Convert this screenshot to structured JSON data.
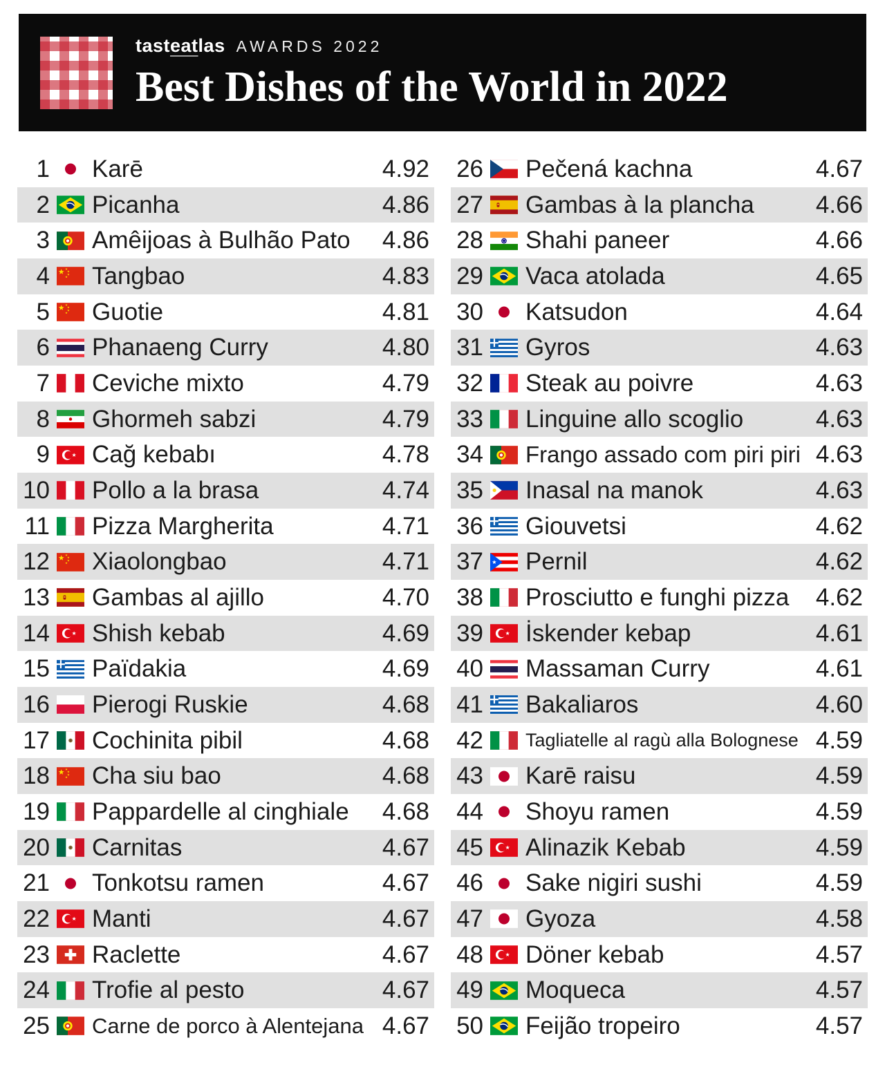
{
  "header": {
    "brand_pre": "tast",
    "brand_underline": "eat",
    "brand_post": "las",
    "awards": "AWARDS 2022",
    "title": "Best Dishes of the World in 2022"
  },
  "colors": {
    "header_bg": "#0b0b0b",
    "row_alt": "#e0e0e0",
    "gingham_red": "#c51c2c",
    "text": "#1b1b1b"
  },
  "list": {
    "items": [
      {
        "rank": 1,
        "country": "japan",
        "code": "jp",
        "dish": "Karē",
        "rating": "4.92"
      },
      {
        "rank": 2,
        "country": "brazil",
        "code": "br",
        "dish": "Picanha",
        "rating": "4.86"
      },
      {
        "rank": 3,
        "country": "portugal",
        "code": "pt",
        "dish": "Amêijoas à Bulhão Pato",
        "rating": "4.86"
      },
      {
        "rank": 4,
        "country": "china",
        "code": "cn",
        "dish": "Tangbao",
        "rating": "4.83"
      },
      {
        "rank": 5,
        "country": "china",
        "code": "cn",
        "dish": "Guotie",
        "rating": "4.81"
      },
      {
        "rank": 6,
        "country": "thailand",
        "code": "th",
        "dish": "Phanaeng Curry",
        "rating": "4.80"
      },
      {
        "rank": 7,
        "country": "peru",
        "code": "pe",
        "dish": "Ceviche mixto",
        "rating": "4.79"
      },
      {
        "rank": 8,
        "country": "iran",
        "code": "ir",
        "dish": "Ghormeh sabzi",
        "rating": "4.79"
      },
      {
        "rank": 9,
        "country": "turkey",
        "code": "tr",
        "dish": "Cağ kebabı",
        "rating": "4.78"
      },
      {
        "rank": 10,
        "country": "peru",
        "code": "pe",
        "dish": "Pollo a la brasa",
        "rating": "4.74"
      },
      {
        "rank": 11,
        "country": "italy",
        "code": "it",
        "dish": "Pizza Margherita",
        "rating": "4.71"
      },
      {
        "rank": 12,
        "country": "china",
        "code": "cn",
        "dish": "Xiaolongbao",
        "rating": "4.71"
      },
      {
        "rank": 13,
        "country": "spain",
        "code": "es",
        "dish": "Gambas al ajillo",
        "rating": "4.70"
      },
      {
        "rank": 14,
        "country": "turkey",
        "code": "tr",
        "dish": "Shish kebab",
        "rating": "4.69"
      },
      {
        "rank": 15,
        "country": "greece",
        "code": "gr",
        "dish": "Païdakia",
        "rating": "4.69"
      },
      {
        "rank": 16,
        "country": "poland",
        "code": "pl",
        "dish": "Pierogi Ruskie",
        "rating": "4.68"
      },
      {
        "rank": 17,
        "country": "mexico",
        "code": "mx",
        "dish": "Cochinita pibil",
        "rating": "4.68"
      },
      {
        "rank": 18,
        "country": "china",
        "code": "cn",
        "dish": "Cha siu bao",
        "rating": "4.68"
      },
      {
        "rank": 19,
        "country": "italy",
        "code": "it",
        "dish": "Pappardelle al cinghiale",
        "rating": "4.68"
      },
      {
        "rank": 20,
        "country": "mexico",
        "code": "mx",
        "dish": "Carnitas",
        "rating": "4.67"
      },
      {
        "rank": 21,
        "country": "japan",
        "code": "jp",
        "dish": "Tonkotsu ramen",
        "rating": "4.67"
      },
      {
        "rank": 22,
        "country": "turkey",
        "code": "tr",
        "dish": "Manti",
        "rating": "4.67"
      },
      {
        "rank": 23,
        "country": "switzerland",
        "code": "ch",
        "dish": "Raclette",
        "rating": "4.67"
      },
      {
        "rank": 24,
        "country": "italy",
        "code": "it",
        "dish": "Trofie al pesto",
        "rating": "4.67"
      },
      {
        "rank": 25,
        "country": "portugal",
        "code": "pt",
        "dish": "Carne de porco à Alentejana",
        "rating": "4.67"
      },
      {
        "rank": 26,
        "country": "czechia",
        "code": "cz",
        "dish": "Pečená kachna",
        "rating": "4.67"
      },
      {
        "rank": 27,
        "country": "spain",
        "code": "es",
        "dish": "Gambas à la plancha",
        "rating": "4.66"
      },
      {
        "rank": 28,
        "country": "india",
        "code": "in",
        "dish": "Shahi paneer",
        "rating": "4.66"
      },
      {
        "rank": 29,
        "country": "brazil",
        "code": "br",
        "dish": "Vaca atolada",
        "rating": "4.65"
      },
      {
        "rank": 30,
        "country": "japan",
        "code": "jp",
        "dish": "Katsudon",
        "rating": "4.64"
      },
      {
        "rank": 31,
        "country": "greece",
        "code": "gr",
        "dish": "Gyros",
        "rating": "4.63"
      },
      {
        "rank": 32,
        "country": "france",
        "code": "fr",
        "dish": "Steak au poivre",
        "rating": "4.63"
      },
      {
        "rank": 33,
        "country": "italy",
        "code": "it",
        "dish": "Linguine allo scoglio",
        "rating": "4.63"
      },
      {
        "rank": 34,
        "country": "portugal",
        "code": "pt",
        "dish": "Frango assado com piri piri",
        "rating": "4.63"
      },
      {
        "rank": 35,
        "country": "philippines",
        "code": "ph",
        "dish": "Inasal na manok",
        "rating": "4.63"
      },
      {
        "rank": 36,
        "country": "greece",
        "code": "gr",
        "dish": "Giouvetsi",
        "rating": "4.62"
      },
      {
        "rank": 37,
        "country": "puerto-rico",
        "code": "pr",
        "dish": "Pernil",
        "rating": "4.62"
      },
      {
        "rank": 38,
        "country": "italy",
        "code": "it",
        "dish": "Prosciutto e funghi pizza",
        "rating": "4.62"
      },
      {
        "rank": 39,
        "country": "turkey",
        "code": "tr",
        "dish": "İskender kebap",
        "rating": "4.61"
      },
      {
        "rank": 40,
        "country": "thailand",
        "code": "th",
        "dish": "Massaman Curry",
        "rating": "4.61"
      },
      {
        "rank": 41,
        "country": "greece",
        "code": "gr",
        "dish": "Bakaliaros",
        "rating": "4.60"
      },
      {
        "rank": 42,
        "country": "italy",
        "code": "it",
        "dish": "Tagliatelle al ragù alla Bolognese",
        "rating": "4.59"
      },
      {
        "rank": 43,
        "country": "japan",
        "code": "jp",
        "dish": "Karē raisu",
        "rating": "4.59"
      },
      {
        "rank": 44,
        "country": "japan",
        "code": "jp",
        "dish": "Shoyu ramen",
        "rating": "4.59"
      },
      {
        "rank": 45,
        "country": "turkey",
        "code": "tr",
        "dish": "Alinazik Kebab",
        "rating": "4.59"
      },
      {
        "rank": 46,
        "country": "japan",
        "code": "jp",
        "dish": "Sake nigiri sushi",
        "rating": "4.59"
      },
      {
        "rank": 47,
        "country": "japan",
        "code": "jp",
        "dish": "Gyoza",
        "rating": "4.58"
      },
      {
        "rank": 48,
        "country": "turkey",
        "code": "tr",
        "dish": "Döner kebab",
        "rating": "4.57"
      },
      {
        "rank": 49,
        "country": "brazil",
        "code": "br",
        "dish": "Moqueca",
        "rating": "4.57"
      },
      {
        "rank": 50,
        "country": "brazil",
        "code": "br",
        "dish": "Feijão tropeiro",
        "rating": "4.57"
      }
    ]
  }
}
